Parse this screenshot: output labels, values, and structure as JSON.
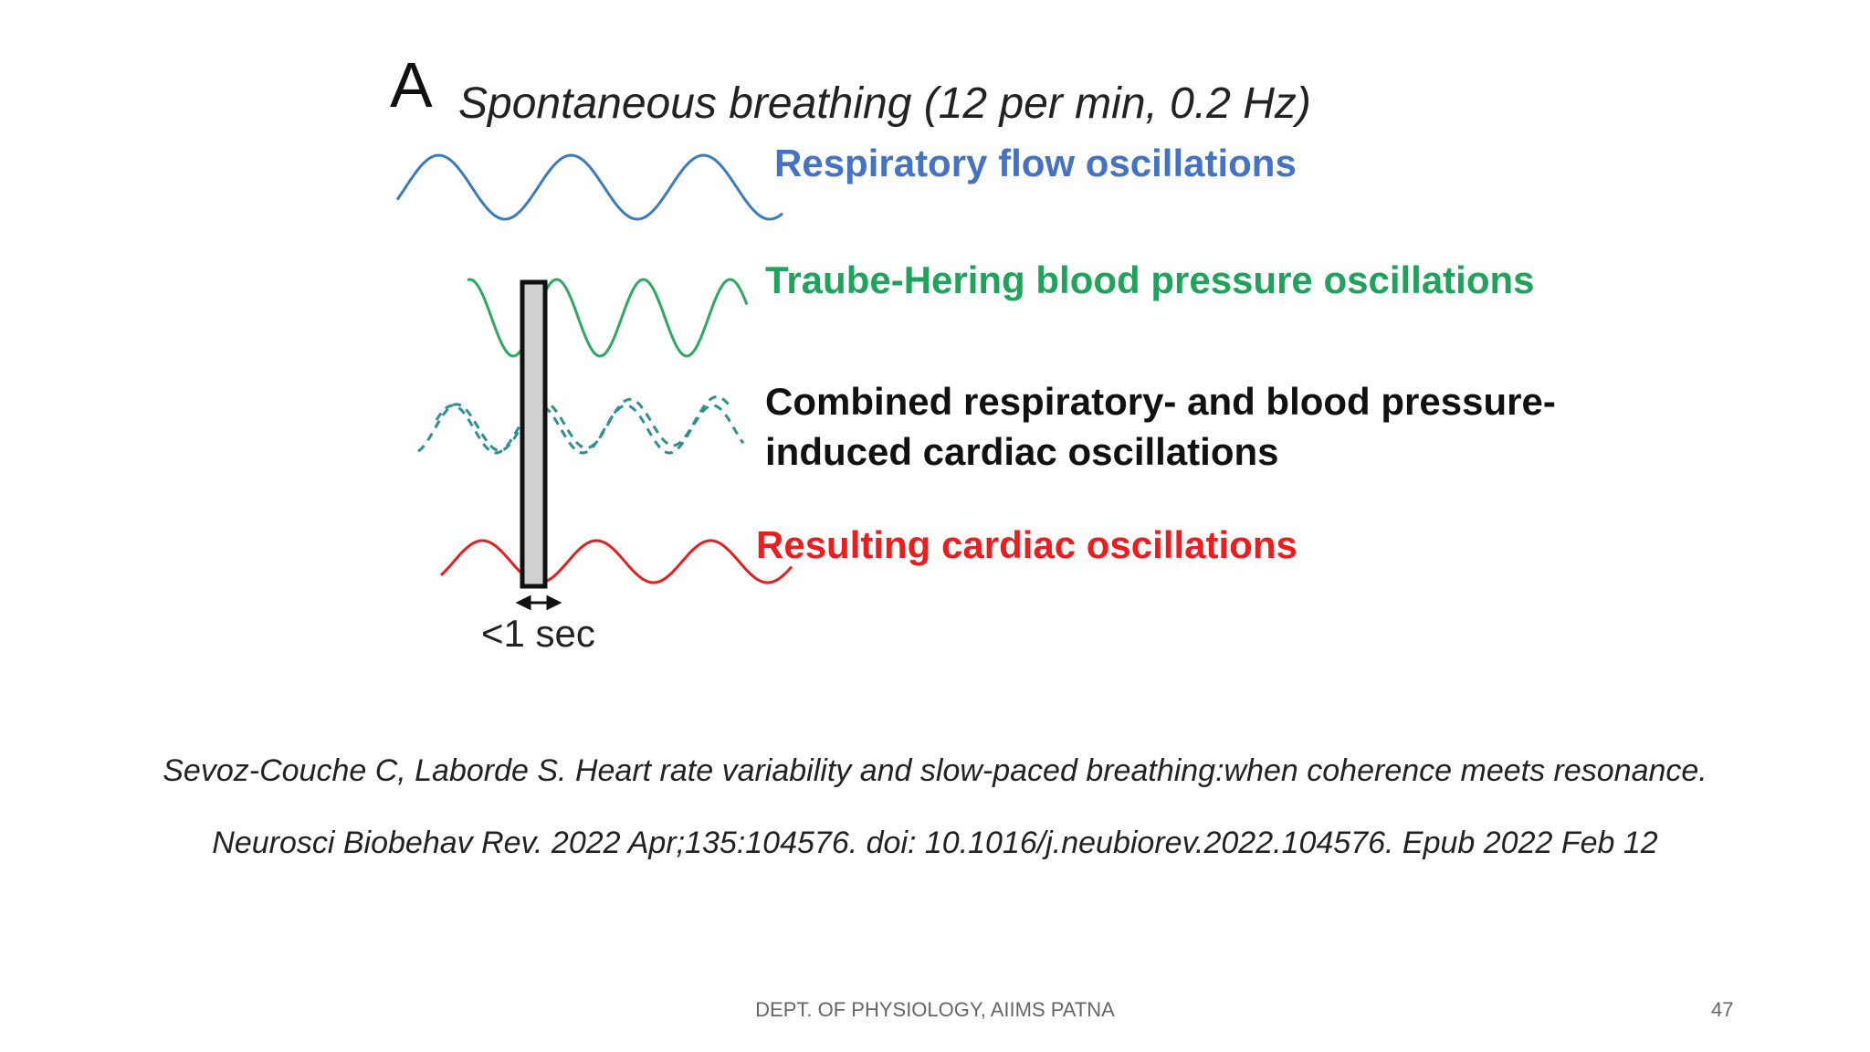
{
  "figure": {
    "panel_letter": "A",
    "title": "Spontaneous breathing (12 per min, 0.2 Hz)",
    "labels": {
      "respiratory": "Respiratory flow oscillations",
      "blood_pressure": "Traube-Hering blood pressure oscillations",
      "combined_line1": "Combined respiratory- and blood pressure-",
      "combined_line2": "induced cardiac oscillations",
      "cardiac": "Resulting cardiac oscillations",
      "time_window": "<1 sec"
    },
    "colors": {
      "respiratory": "#3a7bbf",
      "blood_pressure": "#2ea860",
      "combined_dashed": "#2f8f95",
      "cardiac": "#e61e1e",
      "window_fill": "#d0d0d0"
    }
  },
  "citation": {
    "line1": "Sevoz-Couche C, Laborde S. Heart rate variability and slow-paced breathing:when coherence meets resonance.",
    "line2": "Neurosci Biobehav Rev. 2022 Apr;135:104576. doi: 10.1016/j.neubiorev.2022.104576. Epub 2022 Feb 12"
  },
  "footer": {
    "text": "DEPT. OF PHYSIOLOGY, AIIMS PATNA",
    "page_number": "47"
  }
}
